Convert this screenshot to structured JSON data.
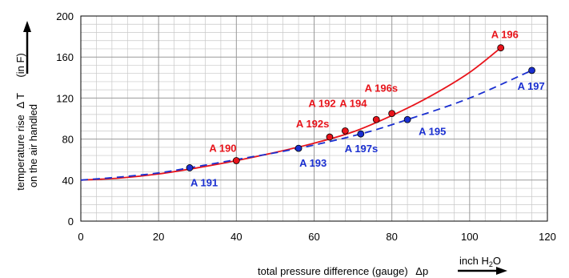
{
  "chart_data": {
    "type": "line",
    "title": "",
    "xlabel_main": "total pressure difference (gauge)",
    "xlabel_symbol": "Δp",
    "xunit_base": "inch H",
    "xunit_sub": "2",
    "xunit_tail": "O",
    "ylabel_line1": "temperature rise",
    "ylabel_symbol": "Δ T",
    "ylabel_unit": "(in F)",
    "ylabel_line2": "on the air handled",
    "xlim": [
      0,
      120
    ],
    "ylim": [
      0,
      200
    ],
    "x_ticks": [
      "0",
      "20",
      "40",
      "60",
      "80",
      "100",
      "120"
    ],
    "y_ticks": [
      "0",
      "40",
      "80",
      "120",
      "160",
      "200"
    ],
    "grid": true,
    "series": [
      {
        "color": "#e8141b",
        "style": "solid",
        "curve_x": [
          0,
          10,
          20,
          30,
          40,
          50,
          60,
          70,
          80,
          90,
          100,
          108
        ],
        "curve_y": [
          40,
          42,
          46,
          52,
          59,
          67,
          76,
          87,
          103,
          122,
          145,
          169
        ],
        "points": [
          {
            "label": "A 190",
            "x": 40,
            "y": 59
          },
          {
            "label": "A 192s",
            "x": 64,
            "y": 82
          },
          {
            "label": "A 192",
            "x": 68,
            "y": 88
          },
          {
            "label": "A 194",
            "x": 76,
            "y": 99
          },
          {
            "label": "A 196s",
            "x": 80,
            "y": 105
          },
          {
            "label": "A 196",
            "x": 108,
            "y": 169
          }
        ]
      },
      {
        "color": "#1a2fd0",
        "style": "dashed",
        "curve_x": [
          0,
          10,
          20,
          28,
          40,
          56,
          72,
          84,
          100,
          116
        ],
        "curve_y": [
          40,
          43,
          47,
          52,
          60,
          71,
          85,
          99,
          120,
          147
        ],
        "points": [
          {
            "label": "A 191",
            "x": 28,
            "y": 52
          },
          {
            "label": "A 193",
            "x": 56,
            "y": 71
          },
          {
            "label": "A 197s",
            "x": 72,
            "y": 85
          },
          {
            "label": "A 195",
            "x": 84,
            "y": 99
          },
          {
            "label": "A 197",
            "x": 116,
            "y": 147
          }
        ]
      }
    ]
  }
}
